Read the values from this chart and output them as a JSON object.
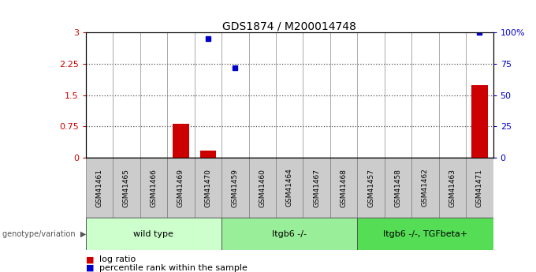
{
  "title": "GDS1874 / M200014748",
  "samples": [
    "GSM41461",
    "GSM41465",
    "GSM41466",
    "GSM41469",
    "GSM41470",
    "GSM41459",
    "GSM41460",
    "GSM41464",
    "GSM41467",
    "GSM41468",
    "GSM41457",
    "GSM41458",
    "GSM41462",
    "GSM41463",
    "GSM41471"
  ],
  "log_ratio": [
    0,
    0,
    0,
    0.82,
    0.18,
    0,
    0,
    0,
    0,
    0,
    0,
    0,
    0,
    0,
    1.75
  ],
  "percentile_rank": [
    0,
    0,
    0,
    0,
    2.85,
    2.15,
    0,
    0,
    0,
    0,
    0,
    0,
    0,
    0,
    3.0
  ],
  "groups": [
    {
      "label": "wild type",
      "start": 0,
      "end": 4,
      "color": "#ccffcc"
    },
    {
      "label": "Itgb6 -/-",
      "start": 5,
      "end": 9,
      "color": "#99ee99"
    },
    {
      "label": "Itgb6 -/-, TGFbeta+",
      "start": 10,
      "end": 14,
      "color": "#55dd55"
    }
  ],
  "left_yticks": [
    0,
    0.75,
    1.5,
    2.25,
    3.0
  ],
  "left_yticklabels": [
    "0",
    "0.75",
    "1.5",
    "2.25",
    "3"
  ],
  "right_yticks": [
    0,
    25,
    50,
    75,
    100
  ],
  "right_yticklabels": [
    "0",
    "25",
    "50",
    "75",
    "100%"
  ],
  "bar_color_red": "#cc0000",
  "bar_color_blue": "#0000cc",
  "dotted_line_color": "#555555",
  "ylabel_left_color": "#cc0000",
  "ylabel_right_color": "#0000cc",
  "bg_color": "#ffffff",
  "sample_bg": "#cccccc",
  "sample_border": "#888888",
  "genotype_label": "genotype/variation",
  "legend_log": "log ratio",
  "legend_pct": "percentile rank within the sample"
}
